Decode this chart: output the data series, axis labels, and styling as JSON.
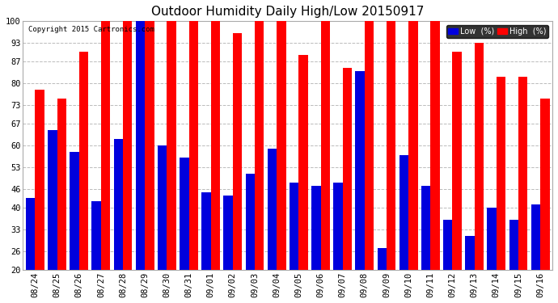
{
  "title": "Outdoor Humidity Daily High/Low 20150917",
  "copyright": "Copyright 2015 Cartronics.com",
  "categories": [
    "08/24",
    "08/25",
    "08/26",
    "08/27",
    "08/28",
    "08/29",
    "08/30",
    "08/31",
    "09/01",
    "09/02",
    "09/03",
    "09/04",
    "09/05",
    "09/06",
    "09/07",
    "09/08",
    "09/09",
    "09/10",
    "09/11",
    "09/12",
    "09/13",
    "09/14",
    "09/15",
    "09/16"
  ],
  "high_values": [
    78,
    75,
    90,
    100,
    100,
    100,
    100,
    100,
    100,
    96,
    100,
    100,
    89,
    100,
    85,
    100,
    100,
    100,
    100,
    90,
    93,
    82,
    82,
    75
  ],
  "low_values": [
    43,
    65,
    58,
    42,
    62,
    100,
    60,
    56,
    45,
    44,
    51,
    59,
    48,
    47,
    48,
    84,
    27,
    57,
    47,
    36,
    31,
    40,
    36,
    41
  ],
  "bar_color_high": "#ff0000",
  "bar_color_low": "#0000dd",
  "bg_color": "#ffffff",
  "plot_bg_color": "#ffffff",
  "grid_color": "#bbbbbb",
  "title_fontsize": 11,
  "tick_fontsize": 7.5,
  "ylabel_values": [
    20,
    26,
    33,
    40,
    46,
    53,
    60,
    67,
    73,
    80,
    87,
    93,
    100
  ],
  "ylim": [
    20,
    100
  ],
  "legend_low_label": "Low  (%)",
  "legend_high_label": "High  (%)"
}
